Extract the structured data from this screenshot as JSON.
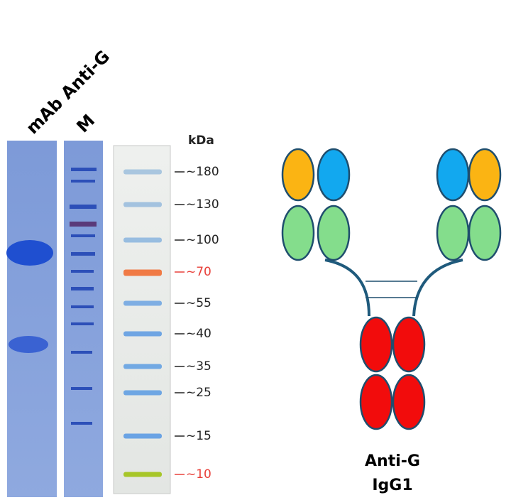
{
  "gel": {
    "lane_labels": [
      "mAb Anti-G",
      "M"
    ]
  },
  "ladder": {
    "unit": "kDa",
    "markers": [
      {
        "label": "~180",
        "color": "#222222",
        "band_color": "#a9c6df"
      },
      {
        "label": "~130",
        "color": "#222222",
        "band_color": "#a3c2df"
      },
      {
        "label": "~100",
        "color": "#222222",
        "band_color": "#98bde0"
      },
      {
        "label": "~70",
        "color": "#e8403a",
        "band_color": "#f07a45"
      },
      {
        "label": "~55",
        "color": "#222222",
        "band_color": "#7eaee3"
      },
      {
        "label": "~40",
        "color": "#222222",
        "band_color": "#6fa5e3"
      },
      {
        "label": "~35",
        "color": "#222222",
        "band_color": "#72a9e3"
      },
      {
        "label": "~25",
        "color": "#222222",
        "band_color": "#6ea6e3"
      },
      {
        "label": "~15",
        "color": "#222222",
        "band_color": "#6aa3e4"
      },
      {
        "label": "~10",
        "color": "#e8403a",
        "band_color": "#a7c628"
      }
    ]
  },
  "antibody": {
    "name": "Anti-G",
    "isotype": "IgG1"
  }
}
